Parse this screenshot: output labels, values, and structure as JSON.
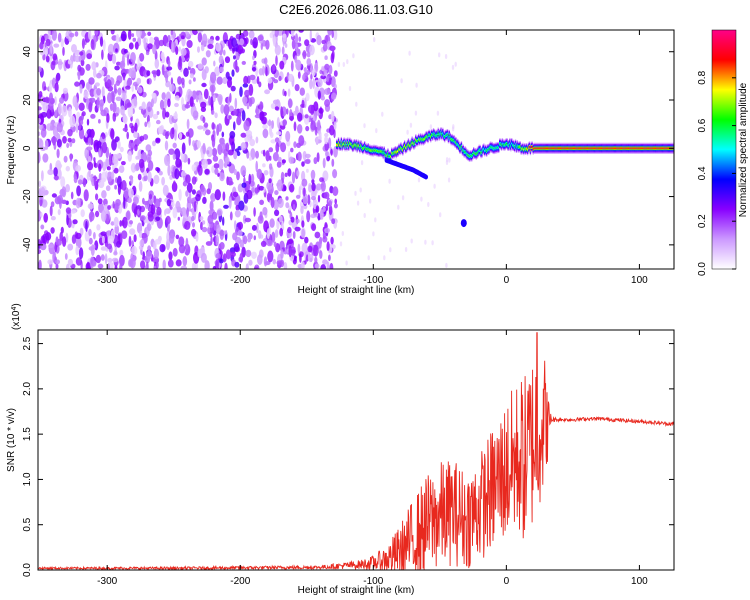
{
  "title": "C2E6.2026.086.11.03.G10",
  "chart_data": [
    {
      "type": "heatmap",
      "xlabel": "Height of straight line (km)",
      "ylabel": "Frequency (Hz)",
      "xlim": [
        -352,
        126
      ],
      "ylim": [
        -50,
        49
      ],
      "x_ticks": [
        -300,
        -200,
        -100,
        0,
        100
      ],
      "y_ticks": [
        -40,
        -20,
        0,
        20,
        40
      ],
      "grid": false,
      "colorbar": {
        "label": "Normalized spectral amplitude",
        "range": [
          0,
          1
        ],
        "ticks": [
          0.0,
          0.2,
          0.4,
          0.6,
          0.8
        ],
        "colors": [
          "#ffffff",
          "#cc99ff",
          "#8800ff",
          "#0000ff",
          "#00ffff",
          "#00ff00",
          "#ffff00",
          "#ff0000",
          "#ff0088"
        ]
      },
      "noise_region_x": [
        -352,
        -128
      ],
      "ridge": {
        "x": [
          -128,
          -118,
          -108,
          -98,
          -88,
          -78,
          -68,
          -58,
          -50,
          -44,
          -38,
          -32,
          -28,
          -24,
          -18,
          -12,
          -6,
          0,
          6,
          12,
          20,
          126
        ],
        "freq": [
          2,
          1.5,
          0.5,
          -1,
          -3,
          0,
          3,
          5,
          6,
          5,
          2,
          -1,
          -3,
          -2,
          -1,
          0,
          1,
          2,
          1,
          0,
          0,
          0
        ],
        "amplitude": [
          0.65,
          0.6,
          0.55,
          0.55,
          0.6,
          0.65,
          0.6,
          0.55,
          0.5,
          0.5,
          0.55,
          0.5,
          0.55,
          0.55,
          0.5,
          0.5,
          0.5,
          0.5,
          0.5,
          0.6,
          0.85,
          0.85
        ]
      },
      "branch": {
        "x": [
          -90,
          -80,
          -70,
          -60
        ],
        "freq": [
          -5,
          -7,
          -9,
          -12
        ],
        "amplitude": 0.35
      },
      "blob": {
        "x": -32,
        "freq": -31,
        "amplitude": 0.35
      }
    },
    {
      "type": "line",
      "xlabel": "Height of straight line (km)",
      "ylabel": "SNR (10 * v/v)",
      "y_multiplier": "(x10",
      "y_multiplier_exp": "4",
      "y_multiplier_close": ")",
      "xlim": [
        -352,
        126
      ],
      "ylim": [
        0,
        2.65
      ],
      "x_ticks": [
        -300,
        -200,
        -100,
        0,
        100
      ],
      "y_ticks": [
        0.0,
        0.5,
        1.0,
        1.5,
        2.0,
        2.5
      ],
      "grid": false,
      "color": "#e8281e",
      "envelope": {
        "x": [
          -352,
          -250,
          -140,
          -110,
          -100,
          -90,
          -80,
          -70,
          -60,
          -50,
          -40,
          -30,
          -20,
          -10,
          0,
          10,
          15,
          20,
          25,
          30,
          32,
          34,
          40,
          50,
          60,
          70,
          80,
          90,
          100,
          110,
          126
        ],
        "mean": [
          0.02,
          0.02,
          0.03,
          0.06,
          0.08,
          0.12,
          0.2,
          0.35,
          0.5,
          0.6,
          0.65,
          0.55,
          0.7,
          0.9,
          1.1,
          1.25,
          1.2,
          1.45,
          1.6,
          1.65,
          1.65,
          1.66,
          1.66,
          1.66,
          1.67,
          1.67,
          1.66,
          1.65,
          1.64,
          1.63,
          1.61
        ],
        "spread": [
          0.01,
          0.015,
          0.02,
          0.05,
          0.08,
          0.15,
          0.3,
          0.45,
          0.55,
          0.6,
          0.6,
          0.55,
          0.6,
          0.7,
          0.8,
          0.9,
          1.0,
          1.0,
          0.9,
          0.7,
          0.2,
          0.03,
          0.02,
          0.02,
          0.02,
          0.02,
          0.02,
          0.02,
          0.02,
          0.02,
          0.02
        ]
      },
      "peak": {
        "x": 23,
        "y": 2.62
      }
    }
  ]
}
